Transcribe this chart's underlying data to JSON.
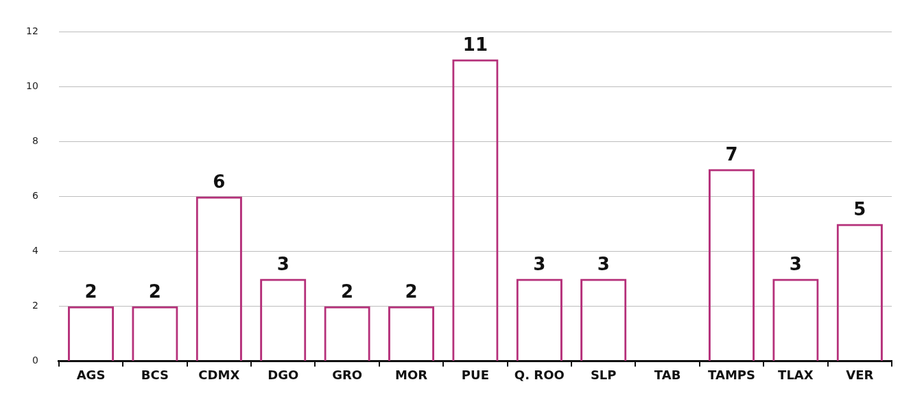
{
  "chart_data": {
    "type": "bar",
    "categories": [
      "AGS",
      "BCS",
      "CDMX",
      "DGO",
      "GRO",
      "MOR",
      "PUE",
      "Q. ROO",
      "SLP",
      "TAB",
      "TAMPS",
      "TLAX",
      "VER"
    ],
    "values": [
      2,
      2,
      6,
      3,
      2,
      2,
      11,
      3,
      3,
      null,
      7,
      3,
      5
    ],
    "color": "#b5307a",
    "ylim": [
      0,
      12
    ],
    "yticks": [
      0,
      2,
      4,
      6,
      8,
      10,
      12
    ],
    "grid": "y",
    "data_labels": true,
    "legend": false
  }
}
